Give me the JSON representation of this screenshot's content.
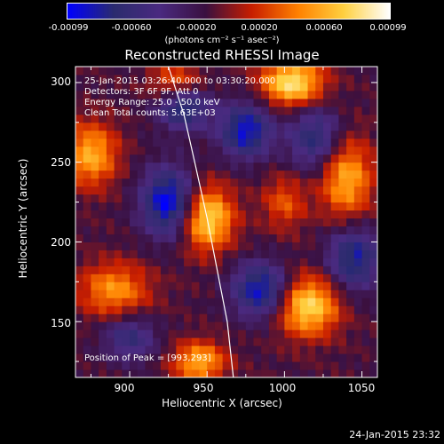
{
  "colorbar": {
    "tick_labels": [
      "-0.00099",
      "-0.00060",
      "-0.00020",
      "0.00020",
      "0.00060",
      "0.00099"
    ],
    "units": "(photons cm⁻² s⁻¹ asec⁻²)",
    "stops": [
      "#0000ff",
      "#2b2b6e",
      "#4a2a80",
      "#3a1040",
      "#c81e00",
      "#ff8000",
      "#ffd040",
      "#ffffff"
    ]
  },
  "chart_data": {
    "type": "heatmap",
    "title": "Reconstructed RHESSI Image",
    "xlabel": "Heliocentric X (arcsec)",
    "ylabel": "Heliocentric Y (arcsec)",
    "xlim": [
      865,
      1060
    ],
    "ylim": [
      115,
      310
    ],
    "x_ticks": [
      900,
      950,
      1000,
      1050
    ],
    "y_ticks": [
      150,
      200,
      250,
      300
    ],
    "clim": [
      -0.00099,
      0.00099
    ],
    "annotations": [
      "25-Jan-2015 03:26:40.000 to 03:30:20.000",
      "Detectors: 3F 6F 9F, Att 0",
      "Energy Range: 25.0 - 50.0 keV",
      "Clean     Total counts: 5.63E+03"
    ],
    "peak_label": "Position of Peak = [993,293]",
    "peak": [
      993,
      293
    ],
    "limb_curve": [
      [
        925,
        310
      ],
      [
        935,
        280
      ],
      [
        942,
        250
      ],
      [
        950,
        215
      ],
      [
        957,
        180
      ],
      [
        963,
        150
      ],
      [
        967,
        115
      ]
    ],
    "sources": [
      {
        "x": 1005,
        "y": 300,
        "amp": 0.00095,
        "sx": 14,
        "sy": 10
      },
      {
        "x": 950,
        "y": 215,
        "amp": 0.0009,
        "sx": 12,
        "sy": 14
      },
      {
        "x": 1015,
        "y": 160,
        "amp": 0.0009,
        "sx": 14,
        "sy": 13
      },
      {
        "x": 875,
        "y": 255,
        "amp": 0.0007,
        "sx": 12,
        "sy": 14
      },
      {
        "x": 1040,
        "y": 240,
        "amp": 0.0007,
        "sx": 12,
        "sy": 18
      },
      {
        "x": 890,
        "y": 170,
        "amp": 0.0006,
        "sx": 16,
        "sy": 12
      },
      {
        "x": 945,
        "y": 125,
        "amp": 0.0007,
        "sx": 12,
        "sy": 9
      },
      {
        "x": 930,
        "y": 300,
        "amp": 0.0005,
        "sx": 12,
        "sy": 8
      },
      {
        "x": 1000,
        "y": 225,
        "amp": 0.0004,
        "sx": 10,
        "sy": 12
      },
      {
        "x": 935,
        "y": 285,
        "amp": -0.0007,
        "sx": 12,
        "sy": 10
      },
      {
        "x": 925,
        "y": 225,
        "amp": -0.0009,
        "sx": 12,
        "sy": 15
      },
      {
        "x": 975,
        "y": 270,
        "amp": -0.0008,
        "sx": 12,
        "sy": 12
      },
      {
        "x": 1020,
        "y": 265,
        "amp": -0.0006,
        "sx": 12,
        "sy": 14
      },
      {
        "x": 985,
        "y": 170,
        "amp": -0.0008,
        "sx": 13,
        "sy": 12
      },
      {
        "x": 1045,
        "y": 190,
        "amp": -0.0007,
        "sx": 12,
        "sy": 14
      },
      {
        "x": 900,
        "y": 140,
        "amp": -0.0005,
        "sx": 12,
        "sy": 10
      }
    ]
  },
  "datestamp": "24-Jan-2015 23:32"
}
